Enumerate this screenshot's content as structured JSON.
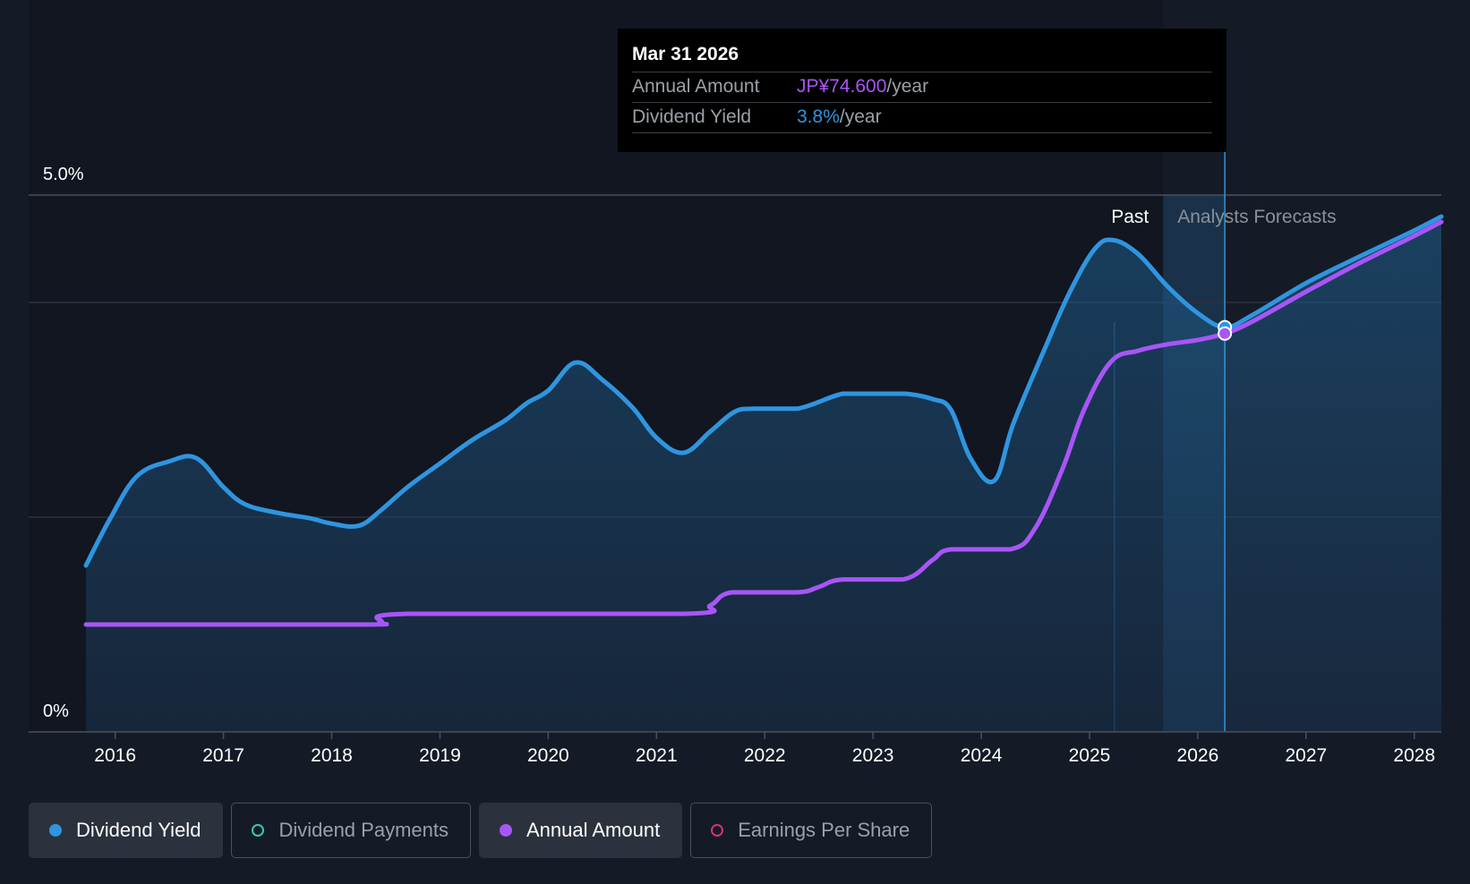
{
  "tooltip": {
    "date": "Mar 31 2026",
    "rows": [
      {
        "label": "Annual Amount",
        "value": "JP¥74.600",
        "unit": "/year"
      },
      {
        "label": "Dividend Yield",
        "value": "3.8%",
        "unit": "/year"
      }
    ]
  },
  "legend": {
    "items": [
      {
        "label": "Dividend Yield",
        "color": "#2f95e0",
        "active": true,
        "filled": true
      },
      {
        "label": "Dividend Payments",
        "color": "#35c9b5",
        "active": false,
        "filled": false
      },
      {
        "label": "Annual Amount",
        "color": "#a855f7",
        "active": true,
        "filled": true
      },
      {
        "label": "Earnings Per Share",
        "color": "#d6336c",
        "active": false,
        "filled": false
      }
    ]
  },
  "chart_data": {
    "type": "line",
    "title": "",
    "xlabel": "",
    "ylabel": "",
    "y_tick_labels": [
      "5.0%",
      "0%"
    ],
    "y_ticks": [
      5.0,
      0
    ],
    "ylim": [
      0,
      5.0
    ],
    "xlim": [
      2015.73,
      2028.25
    ],
    "x_tick_labels": [
      "2016",
      "2017",
      "2018",
      "2019",
      "2020",
      "2021",
      "2022",
      "2023",
      "2024",
      "2025",
      "2026",
      "2027",
      "2028"
    ],
    "x_ticks": [
      2016,
      2017,
      2018,
      2019,
      2020,
      2021,
      2022,
      2023,
      2024,
      2025,
      2026,
      2027,
      2028
    ],
    "gridlines": [
      5.0,
      4.0,
      2.0
    ],
    "past_label": "Past",
    "forecast_label": "Analysts Forecasts",
    "past_divider_x": 2025.23,
    "shaded_start_x": 2025.68,
    "shaded_end_x": 2026.25,
    "series": [
      {
        "name": "Dividend Yield",
        "color": "#2f95e0",
        "x": [
          2015.73,
          2015.95,
          2016.2,
          2016.5,
          2016.75,
          2017.0,
          2017.2,
          2017.5,
          2017.8,
          2018.0,
          2018.25,
          2018.45,
          2018.7,
          2019.0,
          2019.3,
          2019.6,
          2019.8,
          2020.0,
          2020.25,
          2020.5,
          2020.78,
          2021.0,
          2021.25,
          2021.5,
          2021.72,
          2021.9,
          2022.3,
          2022.72,
          2023.0,
          2023.3,
          2023.55,
          2023.72,
          2023.9,
          2024.12,
          2024.3,
          2024.6,
          2024.82,
          2025.05,
          2025.22,
          2025.45,
          2025.72,
          2026.0,
          2026.25,
          2026.5,
          2027.0,
          2027.5,
          2028.0,
          2028.25
        ],
        "values": [
          1.55,
          1.98,
          2.38,
          2.52,
          2.55,
          2.28,
          2.12,
          2.04,
          1.99,
          1.94,
          1.92,
          2.06,
          2.28,
          2.5,
          2.72,
          2.9,
          3.06,
          3.18,
          3.44,
          3.28,
          3.02,
          2.74,
          2.6,
          2.8,
          2.98,
          3.01,
          3.01,
          3.15,
          3.15,
          3.15,
          3.1,
          3.0,
          2.55,
          2.34,
          2.88,
          3.6,
          4.1,
          4.5,
          4.58,
          4.45,
          4.15,
          3.9,
          3.77,
          3.88,
          4.18,
          4.43,
          4.67,
          4.8
        ]
      },
      {
        "name": "Annual Amount",
        "color": "#a855f7",
        "x": [
          2015.73,
          2018.25,
          2018.45,
          2018.7,
          2021.25,
          2021.5,
          2021.7,
          2022.3,
          2022.5,
          2022.72,
          2023.28,
          2023.55,
          2023.72,
          2024.27,
          2024.5,
          2024.75,
          2024.95,
          2025.2,
          2025.45,
          2025.72,
          2026.0,
          2026.25,
          2026.5,
          2027.0,
          2027.5,
          2028.0,
          2028.25
        ],
        "values": [
          1.0,
          1.0,
          1.02,
          1.1,
          1.1,
          1.18,
          1.3,
          1.3,
          1.35,
          1.42,
          1.42,
          1.6,
          1.7,
          1.7,
          1.9,
          2.45,
          3.0,
          3.45,
          3.55,
          3.61,
          3.65,
          3.71,
          3.82,
          4.1,
          4.37,
          4.62,
          4.75
        ]
      }
    ],
    "markers": [
      {
        "series": "Dividend Yield",
        "x": 2026.25,
        "value": 3.77
      },
      {
        "series": "Annual Amount",
        "x": 2026.25,
        "value": 3.71
      }
    ]
  }
}
